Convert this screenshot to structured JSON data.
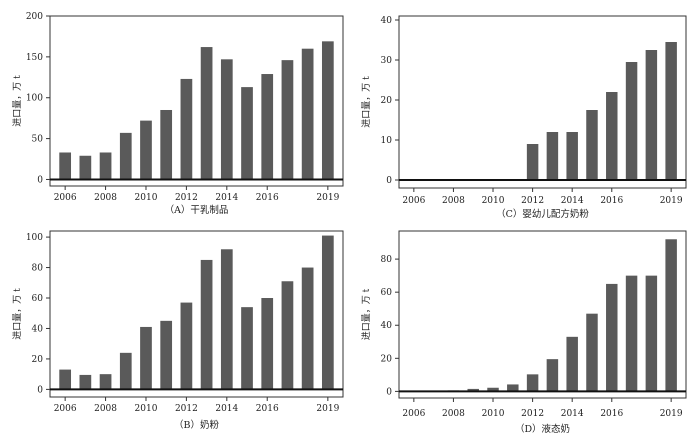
{
  "colors": {
    "bar": "#5a5a5a",
    "axis": "#333333",
    "zero_line": "#111111"
  },
  "chart_data": [
    {
      "type": "bar",
      "caption": "（A）干乳制品",
      "ylabel": "进口量，万 t",
      "xlabel": "",
      "x": [
        2006,
        2007,
        2008,
        2009,
        2010,
        2011,
        2012,
        2013,
        2014,
        2015,
        2016,
        2017,
        2018,
        2019
      ],
      "values": [
        33,
        29,
        33,
        57,
        72,
        85,
        123,
        162,
        147,
        113,
        129,
        146,
        160,
        169
      ],
      "ylim": [
        -8,
        200
      ],
      "yticks": [
        0,
        50,
        100,
        150,
        200
      ],
      "xticks": [
        2006,
        2008,
        2010,
        2012,
        2014,
        2016,
        2019
      ]
    },
    {
      "type": "bar",
      "caption": "（C）婴幼儿配方奶粉",
      "ylabel": "进口量，万 t",
      "xlabel": "",
      "x": [
        2006,
        2007,
        2008,
        2009,
        2010,
        2011,
        2012,
        2013,
        2014,
        2015,
        2016,
        2017,
        2018,
        2019
      ],
      "values": [
        0,
        0,
        0,
        0,
        0,
        0,
        9,
        12,
        12,
        17.5,
        22,
        29.5,
        32.5,
        34.5
      ],
      "ylim": [
        -2,
        41
      ],
      "yticks": [
        0,
        10,
        20,
        30,
        40
      ],
      "xticks": [
        2006,
        2008,
        2010,
        2012,
        2014,
        2016,
        2019
      ]
    },
    {
      "type": "bar",
      "caption": "（B）奶粉",
      "ylabel": "进口量，万 t",
      "xlabel": "",
      "x": [
        2006,
        2007,
        2008,
        2009,
        2010,
        2011,
        2012,
        2013,
        2014,
        2015,
        2016,
        2017,
        2018,
        2019
      ],
      "values": [
        13,
        9.5,
        10,
        24,
        41,
        45,
        57,
        85,
        92,
        54,
        60,
        71,
        80,
        101
      ],
      "ylim": [
        -5,
        104
      ],
      "yticks": [
        0,
        20,
        40,
        60,
        80,
        100
      ],
      "xticks": [
        2006,
        2008,
        2010,
        2012,
        2014,
        2016,
        2019
      ]
    },
    {
      "type": "bar",
      "caption": "（D）液态奶",
      "ylabel": "进口量，万 t",
      "xlabel": "",
      "x": [
        2006,
        2007,
        2008,
        2009,
        2010,
        2011,
        2012,
        2013,
        2014,
        2015,
        2016,
        2017,
        2018,
        2019
      ],
      "values": [
        0.3,
        0.3,
        0.6,
        1.5,
        2.2,
        4.2,
        10.3,
        19.5,
        33,
        47,
        65,
        70,
        70,
        92
      ],
      "ylim": [
        -4,
        97
      ],
      "yticks": [
        0,
        20,
        40,
        60,
        80
      ],
      "xticks": [
        2006,
        2008,
        2010,
        2012,
        2014,
        2016,
        2019
      ]
    }
  ]
}
